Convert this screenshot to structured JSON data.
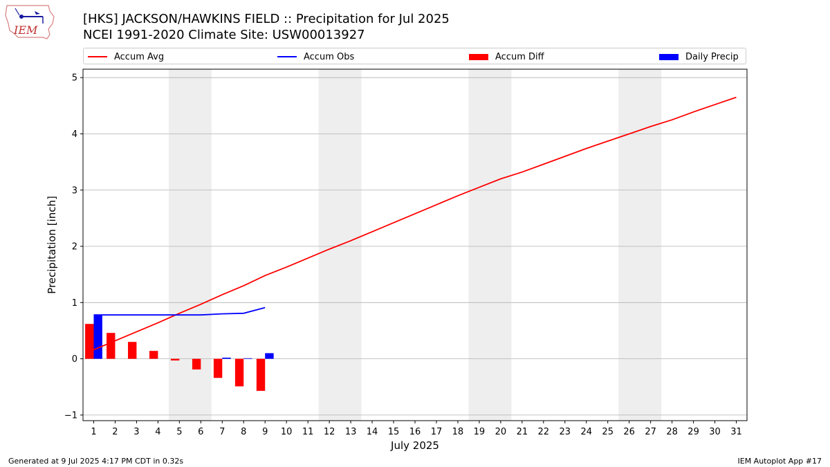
{
  "header": {
    "title_line1": "[HKS] JACKSON/HAWKINS FIELD :: Precipitation for Jul 2025",
    "title_line2": "NCEI 1991-2020 Climate Site: USW00013927",
    "logo_text": "IEM"
  },
  "footer": {
    "left": "Generated at 9 Jul 2025 4:17 PM CDT in 0.32s",
    "right": "IEM Autoplot App #17"
  },
  "legend": {
    "items": [
      {
        "label": "Accum Avg",
        "kind": "line",
        "color": "#ff0000"
      },
      {
        "label": "Accum Obs",
        "kind": "line",
        "color": "#0000ff"
      },
      {
        "label": "Accum Diff",
        "kind": "bar",
        "color": "#ff0000"
      },
      {
        "label": "Daily Precip",
        "kind": "bar",
        "color": "#0000ff"
      }
    ]
  },
  "chart_data": {
    "type": "bar",
    "xlabel": "July 2025",
    "ylabel": "Precipitation [inch]",
    "ylim": [
      -1.1,
      5.15
    ],
    "xlim": [
      0.5,
      31.5
    ],
    "yticks": [
      -1,
      0,
      1,
      2,
      3,
      4,
      5
    ],
    "x": [
      1,
      2,
      3,
      4,
      5,
      6,
      7,
      8,
      9,
      10,
      11,
      12,
      13,
      14,
      15,
      16,
      17,
      18,
      19,
      20,
      21,
      22,
      23,
      24,
      25,
      26,
      27,
      28,
      29,
      30,
      31
    ],
    "grid": "horizontal",
    "weekend_shading": [
      [
        5,
        6
      ],
      [
        12,
        13
      ],
      [
        19,
        20
      ],
      [
        26,
        27
      ]
    ],
    "series": [
      {
        "name": "Accum Avg",
        "type": "line",
        "color": "#ff0000",
        "x": [
          1,
          2,
          3,
          4,
          5,
          6,
          7,
          8,
          9,
          10,
          11,
          12,
          13,
          14,
          15,
          16,
          17,
          18,
          19,
          20,
          21,
          22,
          23,
          24,
          25,
          26,
          27,
          28,
          29,
          30,
          31
        ],
        "values": [
          0.16,
          0.32,
          0.48,
          0.64,
          0.81,
          0.97,
          1.14,
          1.3,
          1.48,
          1.63,
          1.79,
          1.95,
          2.1,
          2.26,
          2.42,
          2.58,
          2.74,
          2.9,
          3.05,
          3.2,
          3.32,
          3.46,
          3.6,
          3.74,
          3.87,
          4.0,
          4.13,
          4.25,
          4.39,
          4.52,
          4.65
        ]
      },
      {
        "name": "Accum Obs",
        "type": "line",
        "color": "#0000ff",
        "x": [
          1,
          2,
          3,
          4,
          5,
          6,
          7,
          8,
          9
        ],
        "values": [
          0.78,
          0.78,
          0.78,
          0.78,
          0.78,
          0.78,
          0.8,
          0.81,
          0.91
        ]
      },
      {
        "name": "Accum Diff",
        "type": "bar",
        "color": "#ff0000",
        "x": [
          1,
          2,
          3,
          4,
          5,
          6,
          7,
          8,
          9
        ],
        "values": [
          0.62,
          0.46,
          0.3,
          0.14,
          -0.03,
          -0.19,
          -0.34,
          -0.49,
          -0.57
        ]
      },
      {
        "name": "Daily Precip",
        "type": "bar",
        "color": "#0000ff",
        "x": [
          1,
          2,
          3,
          4,
          5,
          6,
          7,
          8,
          9
        ],
        "values": [
          0.78,
          0,
          0,
          0,
          0,
          0,
          0.02,
          0.01,
          0.1
        ]
      }
    ]
  }
}
